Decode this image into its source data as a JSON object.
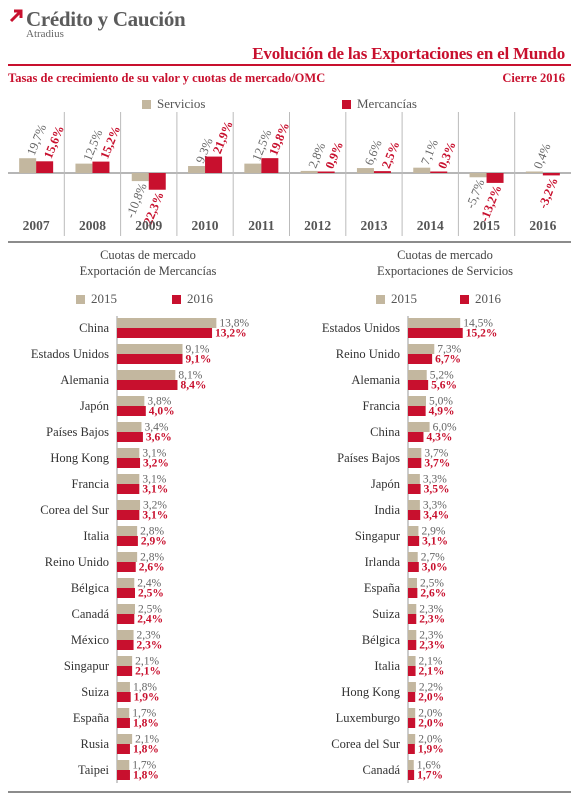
{
  "header": {
    "brand": "Crédito y Caución",
    "brand_sub": "Atradius",
    "title": "Evolución de las Exportaciones en el Mundo",
    "subtitle": "Tasas de crecimiento de su valor y cuotas de mercado/OMC",
    "period": "Cierre 2016"
  },
  "colors": {
    "servicios": "#c3b79f",
    "mercancias": "#c8102e",
    "accent": "#c8102e"
  },
  "chart_data": [
    {
      "type": "bar",
      "categories": [
        "2007",
        "2008",
        "2009",
        "2010",
        "2011",
        "2012",
        "2013",
        "2014",
        "2015",
        "2016"
      ],
      "series": [
        {
          "name": "Servicios",
          "values": [
            19.7,
            12.5,
            -10.8,
            9.3,
            12.5,
            2.8,
            6.6,
            7.1,
            -5.7,
            0.4
          ],
          "labels": [
            "19,7%",
            "12,5%",
            "-10,8%",
            "9,3%",
            "12,5%",
            "2,8%",
            "6,6%",
            "7,1%",
            "-5,7%",
            "0,4%"
          ]
        },
        {
          "name": "Mercancías",
          "values": [
            15.6,
            15.2,
            -22.3,
            21.9,
            19.8,
            0.9,
            2.5,
            0.3,
            -13.2,
            -3.2
          ],
          "labels": [
            "15,6%",
            "15,2%",
            "-22,3%",
            "21,9%",
            "19,8%",
            "0,9%",
            "2,5%",
            "0,3%",
            "-13,2%",
            "-3,2%"
          ]
        }
      ],
      "legend": "top-center"
    },
    {
      "type": "bar",
      "orientation": "horizontal",
      "title": "Cuotas de mercado",
      "subtitle": "Exportación de Mercancías",
      "categories": [
        "China",
        "Estados Unidos",
        "Alemania",
        "Japón",
        "Países Bajos",
        "Hong Kong",
        "Francia",
        "Corea del Sur",
        "Italia",
        "Reino Unido",
        "Bélgica",
        "Canadá",
        "México",
        "Singapur",
        "Suiza",
        "España",
        "Rusia",
        "Taipei"
      ],
      "series": [
        {
          "name": "2015",
          "values": [
            13.8,
            9.1,
            8.1,
            3.8,
            3.4,
            3.1,
            3.1,
            3.2,
            2.8,
            2.8,
            2.4,
            2.5,
            2.3,
            2.1,
            1.8,
            1.7,
            2.1,
            1.7
          ],
          "labels": [
            "13,8%",
            "9,1%",
            "8,1%",
            "3,8%",
            "3,4%",
            "3,1%",
            "3,1%",
            "3,2%",
            "2,8%",
            "2,8%",
            "2,4%",
            "2,5%",
            "2,3%",
            "2,1%",
            "1,8%",
            "1,7%",
            "2,1%",
            "1,7%"
          ]
        },
        {
          "name": "2016",
          "values": [
            13.2,
            9.1,
            8.4,
            4.0,
            3.6,
            3.2,
            3.1,
            3.1,
            2.9,
            2.6,
            2.5,
            2.4,
            2.3,
            2.1,
            1.9,
            1.8,
            1.8,
            1.8
          ],
          "labels": [
            "13,2%",
            "9,1%",
            "8,4%",
            "4,0%",
            "3,6%",
            "3,2%",
            "3,1%",
            "3,1%",
            "2,9%",
            "2,6%",
            "2,5%",
            "2,4%",
            "2,3%",
            "2,1%",
            "1,9%",
            "1,8%",
            "1,8%",
            "1,8%"
          ]
        }
      ]
    },
    {
      "type": "bar",
      "orientation": "horizontal",
      "title": "Cuotas de mercado",
      "subtitle": "Exportaciones de Servicios",
      "categories": [
        "Estados Unidos",
        "Reino Unido",
        "Alemania",
        "Francia",
        "China",
        "Países Bajos",
        "Japón",
        "India",
        "Singapur",
        "Irlanda",
        "España",
        "Suiza",
        "Bélgica",
        "Italia",
        "Hong Kong",
        "Luxemburgo",
        "Corea del Sur",
        "Canadá"
      ],
      "series": [
        {
          "name": "2015",
          "values": [
            14.5,
            7.3,
            5.2,
            5.0,
            6.0,
            3.7,
            3.3,
            3.3,
            2.9,
            2.7,
            2.5,
            2.3,
            2.3,
            2.1,
            2.2,
            2.0,
            2.0,
            1.6
          ],
          "labels": [
            "14,5%",
            "7,3%",
            "5,2%",
            "5,0%",
            "6,0%",
            "3,7%",
            "3,3%",
            "3,3%",
            "2,9%",
            "2,7%",
            "2,5%",
            "2,3%",
            "2,3%",
            "2,1%",
            "2,2%",
            "2,0%",
            "2,0%",
            "1,6%"
          ]
        },
        {
          "name": "2016",
          "values": [
            15.2,
            6.7,
            5.6,
            4.9,
            4.3,
            3.7,
            3.5,
            3.4,
            3.1,
            3.0,
            2.6,
            2.3,
            2.3,
            2.1,
            2.0,
            2.0,
            1.9,
            1.7
          ],
          "labels": [
            "15,2%",
            "6,7%",
            "5,6%",
            "4,9%",
            "4,3%",
            "3,7%",
            "3,5%",
            "3,4%",
            "3,1%",
            "3,0%",
            "2,6%",
            "2,3%",
            "2,3%",
            "2,1%",
            "2,0%",
            "2,0%",
            "1,9%",
            "1,7%"
          ]
        }
      ]
    }
  ]
}
